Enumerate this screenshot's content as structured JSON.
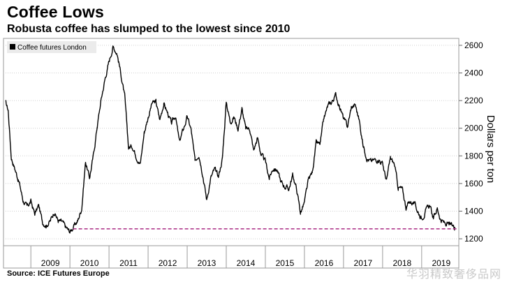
{
  "header": {
    "title": "Coffee Lows",
    "subtitle": "Robusta coffee has slumped to the lowest since 2010"
  },
  "footer": {
    "source": "Source: ICE Futures Europe",
    "watermark": "华羽精致奢侈品网"
  },
  "chart_data": {
    "type": "line",
    "title": "Coffee Lows",
    "subtitle": "Robusta coffee has slumped to the lowest since 2010",
    "ylabel": "Dollars per ton",
    "xlabel": "",
    "y_axis_side": "right",
    "ylim": [
      1150,
      2650
    ],
    "xlim": [
      2008.3,
      2019.95
    ],
    "y_ticks": [
      1200,
      1400,
      1600,
      1800,
      2000,
      2200,
      2400,
      2600
    ],
    "x_tick_labels": [
      "2009",
      "2010",
      "2011",
      "2012",
      "2013",
      "2014",
      "2015",
      "2016",
      "2017",
      "2018",
      "2019"
    ],
    "grid": "horizontal dotted",
    "legend": {
      "position": "top-left",
      "entries": [
        "Coffee futures London"
      ]
    },
    "series": [
      {
        "name": "Coffee futures London",
        "color": "#000000",
        "x": [
          2008.35,
          2008.42,
          2008.5,
          2008.6,
          2008.7,
          2008.8,
          2008.9,
          2009.0,
          2009.1,
          2009.2,
          2009.3,
          2009.4,
          2009.5,
          2009.6,
          2009.7,
          2009.8,
          2009.9,
          2010.0,
          2010.1,
          2010.2,
          2010.3,
          2010.4,
          2010.5,
          2010.6,
          2010.7,
          2010.8,
          2010.9,
          2011.0,
          2011.1,
          2011.2,
          2011.25,
          2011.3,
          2011.4,
          2011.5,
          2011.6,
          2011.7,
          2011.8,
          2011.9,
          2012.0,
          2012.1,
          2012.2,
          2012.3,
          2012.4,
          2012.5,
          2012.6,
          2012.7,
          2012.8,
          2012.9,
          2013.0,
          2013.1,
          2013.2,
          2013.3,
          2013.4,
          2013.5,
          2013.6,
          2013.7,
          2013.8,
          2013.9,
          2014.0,
          2014.1,
          2014.2,
          2014.3,
          2014.4,
          2014.5,
          2014.6,
          2014.7,
          2014.8,
          2014.9,
          2015.0,
          2015.1,
          2015.2,
          2015.3,
          2015.4,
          2015.5,
          2015.6,
          2015.7,
          2015.8,
          2015.9,
          2016.0,
          2016.1,
          2016.2,
          2016.3,
          2016.4,
          2016.5,
          2016.6,
          2016.7,
          2016.8,
          2016.9,
          2017.0,
          2017.1,
          2017.2,
          2017.3,
          2017.4,
          2017.5,
          2017.6,
          2017.7,
          2017.8,
          2017.9,
          2018.0,
          2018.1,
          2018.2,
          2018.3,
          2018.4,
          2018.5,
          2018.6,
          2018.7,
          2018.8,
          2018.9,
          2019.0,
          2019.1,
          2019.2,
          2019.3,
          2019.4,
          2019.5,
          2019.6,
          2019.7,
          2019.8,
          2019.85
        ],
        "values": [
          2190,
          2130,
          1790,
          1700,
          1610,
          1480,
          1430,
          1470,
          1380,
          1440,
          1320,
          1300,
          1330,
          1400,
          1330,
          1320,
          1280,
          1250,
          1290,
          1330,
          1420,
          1760,
          1640,
          1800,
          2020,
          2210,
          2360,
          2480,
          2590,
          2550,
          2480,
          2400,
          2230,
          1860,
          1870,
          1800,
          1740,
          1970,
          2080,
          2180,
          2190,
          2060,
          2180,
          2110,
          2030,
          2090,
          1900,
          1990,
          2080,
          1990,
          1760,
          1820,
          1670,
          1480,
          1640,
          1700,
          1650,
          1780,
          2190,
          2050,
          2080,
          2000,
          2140,
          1990,
          2000,
          1840,
          1930,
          1800,
          1760,
          1640,
          1710,
          1700,
          1610,
          1580,
          1560,
          1660,
          1560,
          1390,
          1460,
          1620,
          1680,
          1890,
          1880,
          2070,
          2160,
          2190,
          2240,
          2160,
          2070,
          2010,
          2150,
          2170,
          2060,
          1880,
          1790,
          1760,
          1770,
          1780,
          1740,
          1620,
          1780,
          1740,
          1570,
          1560,
          1430,
          1470,
          1460,
          1400,
          1350,
          1400,
          1440,
          1350,
          1420,
          1330,
          1310,
          1300,
          1290,
          1285
        ],
        "render_step": 0.01,
        "render_noise": 28
      }
    ],
    "reference_line": {
      "value": 1272,
      "from_x": 2010.08,
      "to_x": 2019.9,
      "style": "dashed",
      "color": "#b03a8c"
    }
  }
}
